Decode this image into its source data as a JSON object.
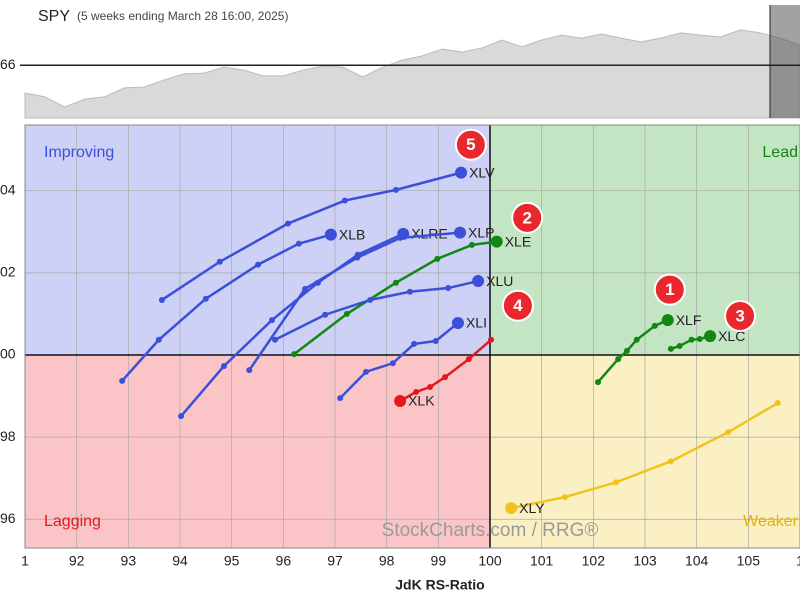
{
  "chart_data": [
    {
      "type": "area",
      "title": "SPY",
      "subtitle": "(5 weeks ending March 28 16:00, 2025)",
      "color": "#d9d9d9",
      "values": [
        558.6,
        557.6,
        554.9,
        557.0,
        557.6,
        560.0,
        560.2,
        562.1,
        563.7,
        563.9,
        565.5,
        564.7,
        563.2,
        563.2,
        564.7,
        565.8,
        565.5,
        562.9,
        565.5,
        567.4,
        568.5,
        570.3,
        569.5,
        570.6,
        572.7,
        570.9,
        572.7,
        574.0,
        573.2,
        574.3,
        573.2,
        572.2,
        573.2,
        574.6,
        574.0,
        573.5,
        575.4,
        574.6,
        573.2,
        571.4
      ],
      "ylim": [
        552,
        582
      ],
      "yticks": [
        {
          "value": 566,
          "label": "66"
        }
      ]
    },
    {
      "type": "rrg",
      "x_label": "JdK RS-Ratio",
      "watermark": "StockCharts.com / RRG®",
      "quadrants": [
        "Improving",
        "Lead",
        "Lagging",
        "Weaker"
      ],
      "xlim": [
        91,
        106
      ],
      "ylim": [
        95.3,
        105.6
      ],
      "xticks": [
        {
          "value": 91,
          "label": "1"
        },
        92,
        93,
        94,
        95,
        96,
        97,
        98,
        99,
        100,
        101,
        102,
        103,
        104,
        105,
        {
          "value": 106,
          "label": "1"
        }
      ],
      "yticks": [
        96,
        98,
        {
          "value": 100,
          "label": "00"
        },
        {
          "value": 102,
          "label": "02"
        },
        {
          "value": 104,
          "label": "04"
        }
      ],
      "series": [
        {
          "name": "XLV",
          "color": "#3b4fd8",
          "x": [
            93.65,
            94.77,
            96.09,
            97.19,
            98.18,
            99.44
          ],
          "values": [
            101.34,
            102.27,
            103.2,
            103.76,
            104.02,
            104.44
          ]
        },
        {
          "name": "XLB",
          "color": "#3b4fd8",
          "x": [
            92.88,
            93.59,
            94.5,
            95.51,
            96.3,
            96.92
          ],
          "values": [
            99.37,
            100.37,
            101.37,
            102.2,
            102.71,
            102.93
          ]
        },
        {
          "name": "XLRE",
          "color": "#3b4fd8",
          "x": [
            94.02,
            94.85,
            95.78,
            96.67,
            97.44,
            98.32
          ],
          "values": [
            98.51,
            99.73,
            100.85,
            101.76,
            102.44,
            102.95
          ]
        },
        {
          "name": "XLP",
          "color": "#3b4fd8",
          "x": [
            95.34,
            96.42,
            97.43,
            98.26,
            99.42
          ],
          "values": [
            99.63,
            101.61,
            102.37,
            102.85,
            102.98
          ]
        },
        {
          "name": "XLE",
          "color": "#118811",
          "x": [
            96.21,
            97.23,
            98.18,
            98.98,
            99.65,
            100.13
          ],
          "values": [
            100.02,
            101.0,
            101.76,
            102.34,
            102.68,
            102.76
          ]
        },
        {
          "name": "XLU",
          "color": "#3b4fd8",
          "x": [
            95.84,
            96.81,
            97.68,
            98.45,
            99.19,
            99.77
          ],
          "values": [
            100.37,
            100.98,
            101.34,
            101.54,
            101.63,
            101.8
          ]
        },
        {
          "name": "XLI",
          "color": "#3b4fd8",
          "x": [
            97.1,
            97.6,
            98.12,
            98.53,
            98.95,
            99.38
          ],
          "values": [
            98.95,
            99.59,
            99.8,
            100.27,
            100.34,
            100.78
          ]
        },
        {
          "name": "XLK",
          "color": "#e31a1c",
          "x": [
            100.02,
            99.59,
            99.13,
            98.84,
            98.57,
            98.26
          ],
          "values": [
            100.37,
            99.9,
            99.46,
            99.22,
            99.1,
            98.88
          ]
        },
        {
          "name": "XLF",
          "color": "#118811",
          "x": [
            102.09,
            102.48,
            102.65,
            102.84,
            103.19,
            103.44
          ],
          "values": [
            99.34,
            99.9,
            100.1,
            100.37,
            100.71,
            100.85
          ]
        },
        {
          "name": "XLC",
          "color": "#118811",
          "x": [
            103.5,
            103.67,
            103.9,
            104.06,
            104.26
          ],
          "values": [
            100.15,
            100.22,
            100.37,
            100.39,
            100.46
          ]
        },
        {
          "name": "XLY",
          "color": "#f0c419",
          "x": [
            105.57,
            104.61,
            103.5,
            102.44,
            101.45,
            100.41
          ],
          "values": [
            98.83,
            98.12,
            97.41,
            96.9,
            96.54,
            96.27
          ]
        }
      ],
      "annotations": [
        {
          "text": "5",
          "x": 99.63,
          "y": 105.12
        },
        {
          "text": "2",
          "x": 100.72,
          "y": 103.34
        },
        {
          "text": "4",
          "x": 100.54,
          "y": 101.2
        },
        {
          "text": "1",
          "x": 103.48,
          "y": 101.59
        },
        {
          "text": "3",
          "x": 104.84,
          "y": 100.95
        }
      ]
    }
  ]
}
